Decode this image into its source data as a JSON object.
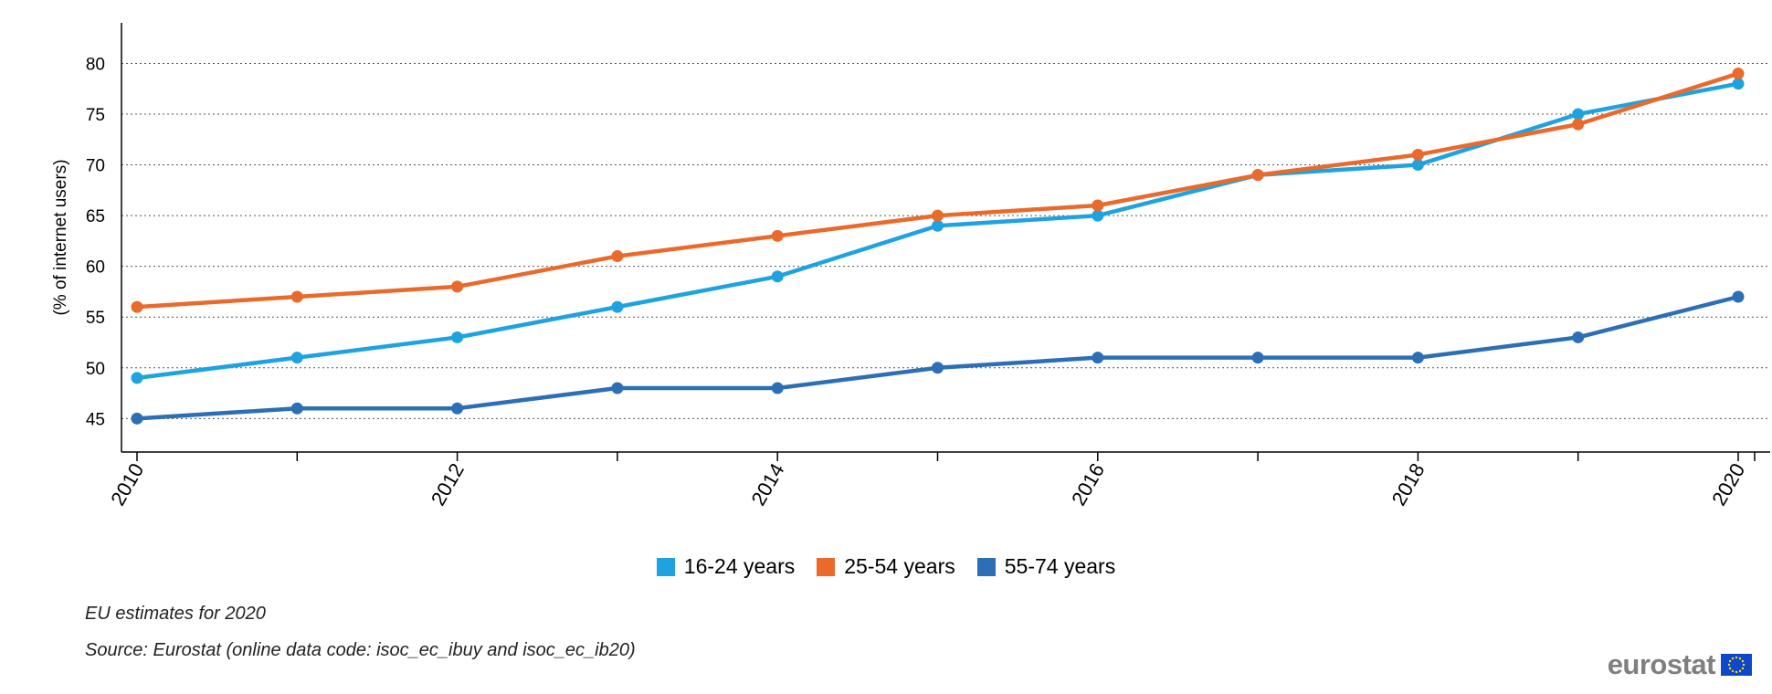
{
  "chart_data": {
    "type": "line",
    "title": "",
    "xlabel": "",
    "ylabel": "(% of internet users)",
    "x": [
      2010,
      2011,
      2012,
      2013,
      2014,
      2015,
      2016,
      2017,
      2018,
      2019,
      2020
    ],
    "x_tick_labels": [
      "2010",
      "2012",
      "2014",
      "2016",
      "2018",
      "2020"
    ],
    "y_ticks": [
      45,
      50,
      55,
      60,
      65,
      70,
      75,
      80
    ],
    "ylim": [
      41.7,
      84
    ],
    "xlim": [
      2009.9,
      2020.2
    ],
    "grid": "horizontal dotted",
    "legend_position": "bottom-center",
    "series": [
      {
        "name": "16-24 years",
        "color": "#1fa3e0",
        "values": [
          49,
          51,
          53,
          56,
          59,
          64,
          65,
          69,
          70,
          75,
          78
        ]
      },
      {
        "name": "25-54 years",
        "color": "#ea6a2b",
        "values": [
          56,
          57,
          58,
          61,
          63,
          65,
          66,
          69,
          71,
          74,
          79
        ]
      },
      {
        "name": "55-74 years",
        "color": "#2c6fb5",
        "values": [
          45,
          46,
          46,
          48,
          48,
          50,
          51,
          51,
          51,
          53,
          57
        ]
      }
    ]
  },
  "notes": {
    "estimate": "EU estimates for 2020",
    "source": "Source: Eurostat (online data code: isoc_ec_ibuy and isoc_ec_ib20)"
  },
  "logo": {
    "text": "eurostat",
    "flag_icon": "eu-flag-icon"
  }
}
